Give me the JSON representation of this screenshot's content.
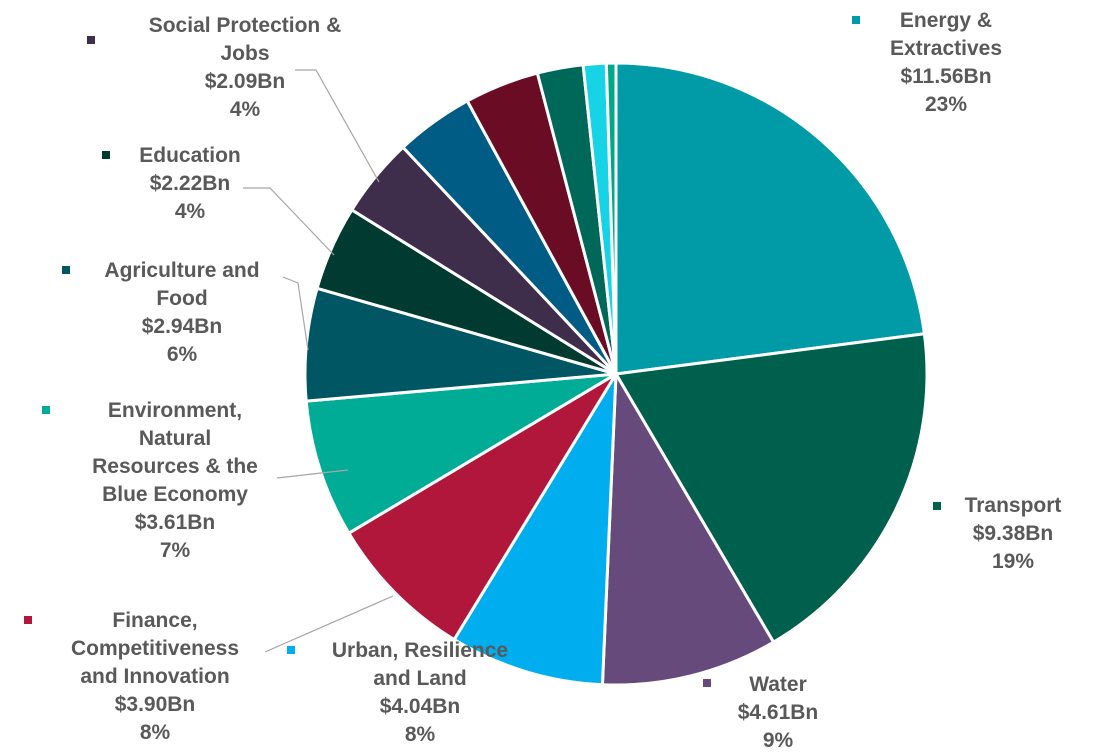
{
  "chart_data": {
    "type": "pie",
    "title": "",
    "start": "top, clockwise",
    "slices": [
      {
        "name": "Energy & Extractives",
        "value": 11.56,
        "value_label": "$11.56Bn",
        "pct_label": "23%",
        "color": "#009ba7",
        "lines": [
          "Energy &",
          "Extractives"
        ]
      },
      {
        "name": "Transport",
        "value": 9.38,
        "value_label": "$9.38Bn",
        "pct_label": "19%",
        "color": "#00604e",
        "lines": [
          "Transport"
        ]
      },
      {
        "name": "Water",
        "value": 4.61,
        "value_label": "$4.61Bn",
        "pct_label": "9%",
        "color": "#664a7c",
        "lines": [
          "Water"
        ]
      },
      {
        "name": "Urban, Resilience and Land",
        "value": 4.04,
        "value_label": "$4.04Bn",
        "pct_label": "8%",
        "color": "#00adee",
        "lines": [
          "Urban, Resilience",
          "and Land"
        ]
      },
      {
        "name": "Finance, Competitiveness and Innovation",
        "value": 3.9,
        "value_label": "$3.90Bn",
        "pct_label": "8%",
        "color": "#b0173a",
        "lines": [
          "Finance,",
          "Competitiveness",
          "and Innovation"
        ]
      },
      {
        "name": "Environment, Natural Resources & the Blue Economy",
        "value": 3.61,
        "value_label": "$3.61Bn",
        "pct_label": "7%",
        "color": "#00ac95",
        "lines": [
          "Environment,",
          "Natural",
          "Resources & the",
          "Blue Economy"
        ]
      },
      {
        "name": "Agriculture and Food",
        "value": 2.94,
        "value_label": "$2.94Bn",
        "pct_label": "6%",
        "color": "#005763",
        "lines": [
          "Agriculture and",
          "Food"
        ]
      },
      {
        "name": "Education",
        "value": 2.22,
        "value_label": "$2.22Bn",
        "pct_label": "4%",
        "color": "#003a30",
        "lines": [
          "Education"
        ]
      },
      {
        "name": "Social Protection & Jobs",
        "value": 2.09,
        "value_label": "$2.09Bn",
        "pct_label": "4%",
        "color": "#3e2d4b",
        "lines": [
          "Social Protection &",
          "Jobs"
        ]
      },
      {
        "name": "",
        "value": 2.05,
        "color": "#005c85"
      },
      {
        "name": "",
        "value": 1.95,
        "color": "#6a0d24"
      },
      {
        "name": "",
        "value": 1.2,
        "color": "#006859"
      },
      {
        "name": "",
        "value": 0.6,
        "color": "#17d3e6"
      },
      {
        "name": "",
        "value": 0.25,
        "color": "#00a88a"
      }
    ]
  }
}
